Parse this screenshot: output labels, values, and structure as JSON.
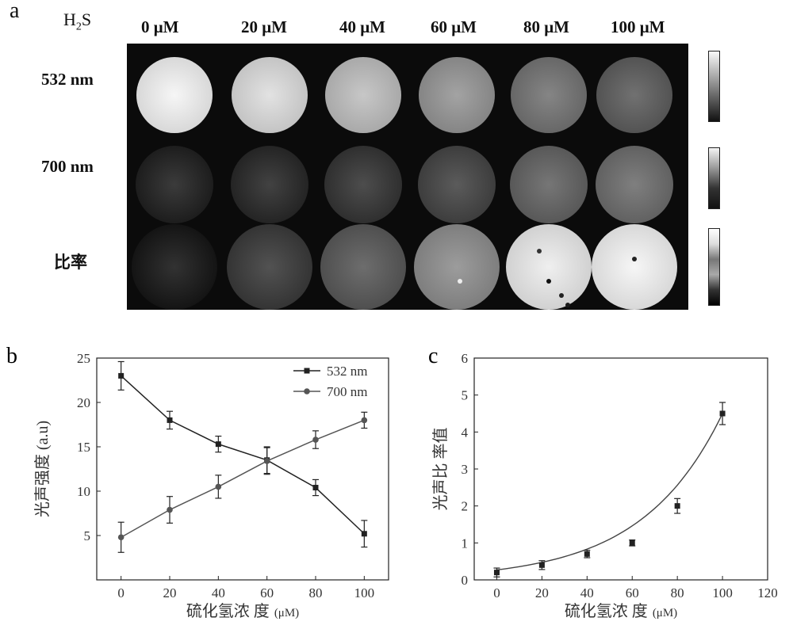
{
  "panel_a": {
    "letter": "a",
    "analyte_label": {
      "main": "H",
      "sub": "2",
      "tail": "S"
    },
    "concentrations": [
      "0 μM",
      "20 μM",
      "40 μM",
      "60 μM",
      "80 μM",
      "100 μM"
    ],
    "rows": [
      {
        "label": "532 nm",
        "intensity": [
          0.95,
          0.86,
          0.74,
          0.58,
          0.45,
          0.36
        ]
      },
      {
        "label": "700 nm",
        "intensity": [
          0.12,
          0.15,
          0.2,
          0.26,
          0.38,
          0.42
        ]
      },
      {
        "label": "比率",
        "intensity": [
          0.08,
          0.22,
          0.34,
          0.55,
          0.92,
          0.95
        ]
      }
    ]
  },
  "chart_data": [
    {
      "panel": "b",
      "type": "line",
      "xlabel_main": "硫化氢浓  度",
      "xlabel_unit": "(μM)",
      "ylabel": "光声强度 (a.u)",
      "xlim": [
        -10,
        110
      ],
      "ylim": [
        0,
        25
      ],
      "xticks": [
        0,
        20,
        40,
        60,
        80,
        100
      ],
      "yticks": [
        5,
        10,
        15,
        20,
        25
      ],
      "x": [
        0,
        20,
        40,
        60,
        80,
        100
      ],
      "legend_position": "top-right",
      "series": [
        {
          "name": "532 nm",
          "marker": "square",
          "values": [
            23.0,
            18.0,
            15.3,
            13.5,
            10.4,
            5.2
          ],
          "errors": [
            1.6,
            1.0,
            0.9,
            1.5,
            0.9,
            1.5
          ]
        },
        {
          "name": "700 nm",
          "marker": "circle",
          "values": [
            4.8,
            7.9,
            10.5,
            13.4,
            15.8,
            18.0
          ],
          "errors": [
            1.7,
            1.5,
            1.3,
            1.5,
            1.0,
            0.9
          ]
        }
      ]
    },
    {
      "panel": "c",
      "type": "scatter",
      "xlabel_main": "硫化氢浓  度",
      "xlabel_unit": "(μM)",
      "ylabel": "光声比  率值",
      "xlim": [
        -10,
        120
      ],
      "ylim": [
        0,
        6
      ],
      "xticks": [
        0,
        20,
        40,
        60,
        80,
        100,
        120
      ],
      "yticks": [
        0,
        1,
        2,
        3,
        4,
        5,
        6
      ],
      "x": [
        0,
        20,
        40,
        60,
        80,
        100
      ],
      "values": [
        0.2,
        0.4,
        0.7,
        1.0,
        2.0,
        4.5
      ],
      "errors": [
        0.12,
        0.12,
        0.1,
        0.08,
        0.2,
        0.3
      ],
      "fit": "exponential"
    }
  ]
}
